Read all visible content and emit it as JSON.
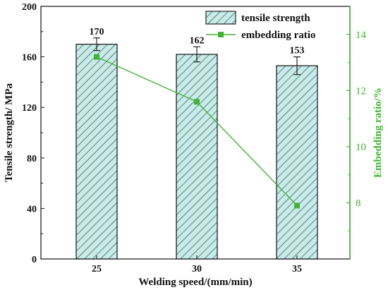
{
  "chart_data": {
    "type": "bar",
    "categories": [
      "25",
      "30",
      "35"
    ],
    "xlabel": "Welding speed/(mm/min)",
    "ylabel": "Tensile strength/ MPa",
    "y2label": "Embedding ratio/%",
    "ylim": [
      0,
      200
    ],
    "y2lim": [
      6,
      15
    ],
    "yticks": [
      "0",
      "40",
      "80",
      "120",
      "160",
      "200"
    ],
    "y2ticks": [
      "8",
      "10",
      "12",
      "14"
    ],
    "grid": false,
    "legend_position": "top-right",
    "series": [
      {
        "name": "tensile strength",
        "type": "bar",
        "values": [
          170,
          162,
          153
        ],
        "errors": [
          5,
          6,
          7
        ],
        "labels": [
          "170",
          "162",
          "153"
        ],
        "fill": "#c5ece9",
        "hatch": "#222222"
      },
      {
        "name": "embedding ratio",
        "type": "line",
        "axis": "right",
        "values": [
          13.2,
          11.6,
          7.9
        ],
        "color": "#44b238"
      }
    ]
  }
}
